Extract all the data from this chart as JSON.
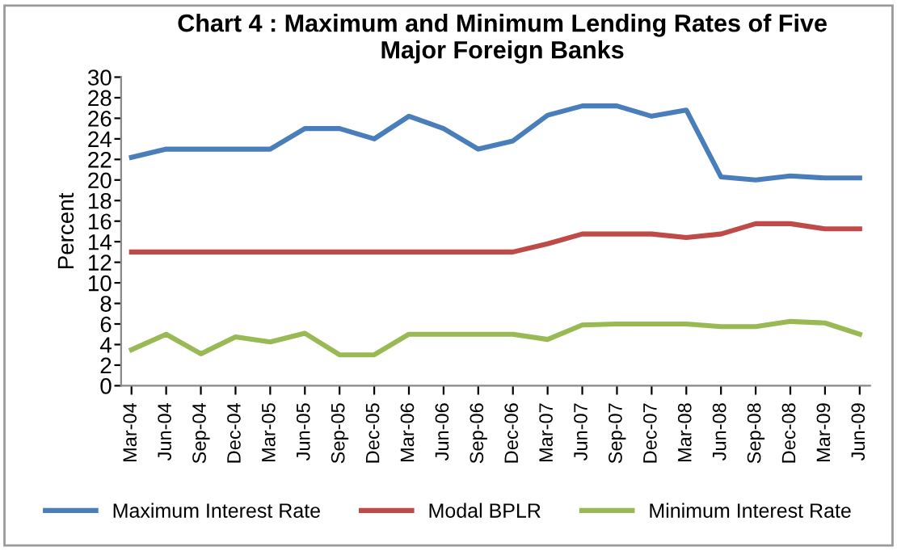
{
  "chart_data": {
    "type": "line",
    "title": "Chart 4 : Maximum and Minimum Lending Rates of Five\nMajor Foreign Banks",
    "ylabel": "Percent",
    "categories": [
      "Mar-04",
      "Jun-04",
      "Sep-04",
      "Dec-04",
      "Mar-05",
      "Jun-05",
      "Sep-05",
      "Dec-05",
      "Mar-06",
      "Jun-06",
      "Sep-06",
      "Dec-06",
      "Mar-07",
      "Jun-07",
      "Sep-07",
      "Dec-07",
      "Mar-08",
      "Jun-08",
      "Sep-08",
      "Dec-08",
      "Mar-09",
      "Jun-09"
    ],
    "series": [
      {
        "name": "Maximum Interest Rate",
        "color": "#4a7ebb",
        "values": [
          22.2,
          23,
          23,
          23,
          23,
          25,
          25,
          24,
          26.2,
          25,
          23,
          23.8,
          26.3,
          27.2,
          27.2,
          26.2,
          26.8,
          20.3,
          20,
          20.4,
          20.2,
          20.2
        ]
      },
      {
        "name": "Modal BPLR",
        "color": "#be4b48",
        "values": [
          13,
          13,
          13,
          13,
          13,
          13,
          13,
          13,
          13,
          13,
          13,
          13,
          13.8,
          14.75,
          14.75,
          14.75,
          14.4,
          14.75,
          15.75,
          15.75,
          15.25,
          15.25
        ]
      },
      {
        "name": "Minimum Interest Rate",
        "color": "#98b954",
        "values": [
          3.5,
          5,
          3.1,
          4.75,
          4.25,
          5.1,
          3,
          3,
          5,
          5,
          5,
          5,
          4.5,
          5.9,
          6,
          6,
          6,
          5.75,
          5.75,
          6.25,
          6.1,
          5
        ]
      }
    ],
    "ylim": [
      0,
      30
    ],
    "yticks": [
      0,
      2,
      4,
      6,
      8,
      10,
      12,
      14,
      16,
      18,
      20,
      22,
      24,
      26,
      28,
      30
    ],
    "grid": false,
    "legend": "bottom",
    "marker": "none",
    "line_style": "solid"
  }
}
